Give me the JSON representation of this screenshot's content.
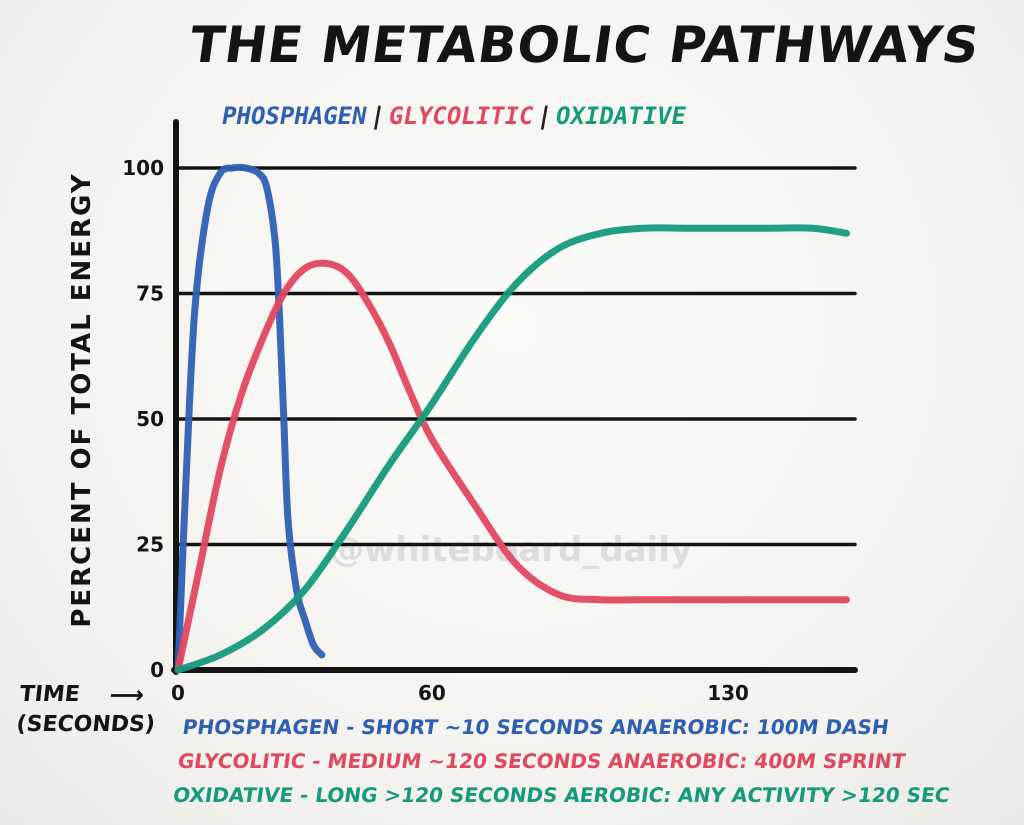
{
  "title": "THE METABOLIC PATHWAYS",
  "subtitle": {
    "parts": [
      "PHOSPHAGEN",
      "GLYCOLITIC",
      "OXIDATIVE"
    ],
    "separator": "|"
  },
  "watermark": "@whiteboard_daily",
  "colors": {
    "phosphagen": "#2f5fb3",
    "glycolitic": "#e0485f",
    "oxidative": "#159a7c",
    "ink": "#141414"
  },
  "notes": [
    {
      "text": "PHOSPHAGEN - SHORT ~10 SECONDS ANAEROBIC: 100M DASH",
      "color": "#2f5fb3"
    },
    {
      "text": "GLYCOLITIC - MEDIUM ~120 SECONDS ANAEROBIC: 400M SPRINT",
      "color": "#e0485f"
    },
    {
      "text": "OXIDATIVE - LONG >120 SECONDS AEROBIC: ANY ACTIVITY >120 SEC",
      "color": "#159a7c"
    }
  ],
  "chart_data": {
    "type": "line",
    "title": "THE METABOLIC PATHWAYS",
    "xlabel": "TIME (SECONDS)",
    "ylabel": "PERCENT OF TOTAL ENERGY",
    "x_ticks": [
      0,
      60,
      130
    ],
    "y_ticks": [
      0,
      25,
      50,
      75,
      100
    ],
    "xlim": [
      0,
      160
    ],
    "ylim": [
      0,
      100
    ],
    "grid": true,
    "series": [
      {
        "name": "PHOSPHAGEN",
        "color": "#2f5fb3",
        "x": [
          0,
          2,
          4,
          7,
          10,
          13,
          16,
          19,
          21,
          23,
          24,
          25,
          26,
          28,
          30,
          32,
          34
        ],
        "y": [
          0,
          40,
          72,
          92,
          99,
          100,
          100,
          99,
          96,
          85,
          70,
          50,
          30,
          16,
          10,
          5,
          3
        ]
      },
      {
        "name": "GLYCOLITIC",
        "color": "#e0485f",
        "x": [
          0,
          5,
          10,
          15,
          20,
          25,
          30,
          35,
          40,
          45,
          50,
          55,
          60,
          70,
          80,
          90,
          100,
          110,
          120,
          130,
          140,
          150,
          158
        ],
        "y": [
          0,
          20,
          40,
          55,
          66,
          75,
          80,
          81,
          79,
          73,
          65,
          55,
          46,
          33,
          21,
          15,
          14,
          14,
          14,
          14,
          14,
          14,
          14
        ]
      },
      {
        "name": "OXIDATIVE",
        "color": "#159a7c",
        "x": [
          0,
          10,
          20,
          30,
          40,
          50,
          60,
          70,
          80,
          90,
          100,
          110,
          120,
          130,
          140,
          150,
          158
        ],
        "y": [
          0,
          3,
          8,
          16,
          28,
          41,
          53,
          66,
          77,
          84,
          87,
          88,
          88,
          88,
          88,
          88,
          87
        ]
      }
    ]
  }
}
